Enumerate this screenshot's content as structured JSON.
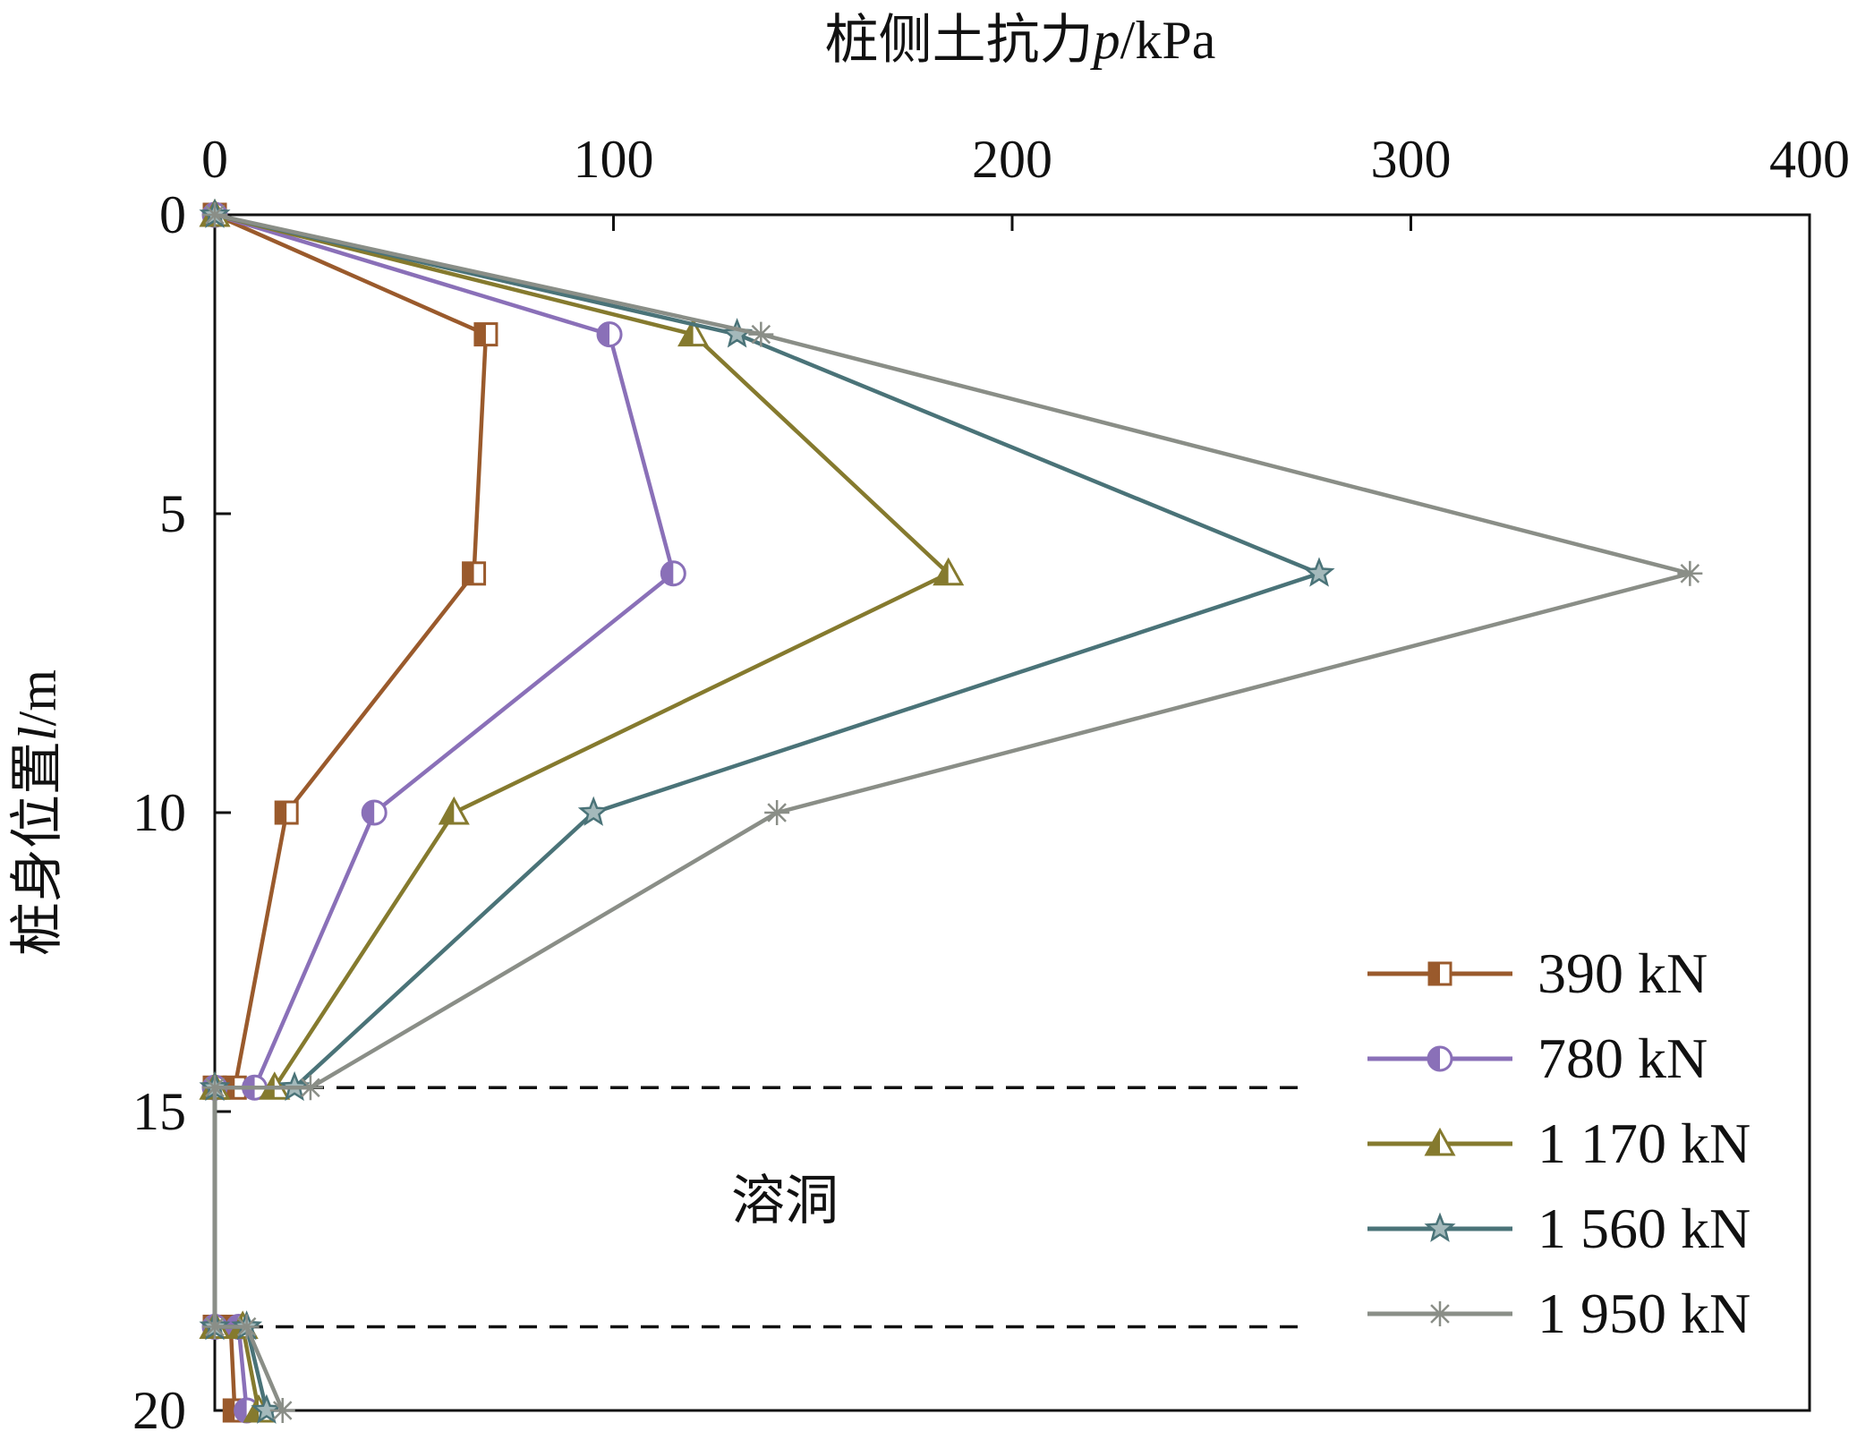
{
  "chart_data": {
    "type": "line",
    "xlabel": "桩侧土抗力",
    "xlabel_var": "p",
    "xlabel_unit": "/kPa",
    "ylabel": "桩身位置",
    "ylabel_var": "l",
    "ylabel_unit": "/m",
    "xlim": [
      0,
      400
    ],
    "ylim": [
      0,
      20
    ],
    "y_inverted": true,
    "x_axis_position": "top",
    "xticks": [
      "0",
      "100",
      "200",
      "300",
      "400"
    ],
    "yticks": [
      "0",
      "5",
      "10",
      "15",
      "20"
    ],
    "grid": false,
    "legend_position": "bottom-right",
    "annotation": {
      "text": "溶洞",
      "x": 143,
      "y": 16.5
    },
    "reference_lines": [
      {
        "y": 14.6,
        "x_from": 0,
        "x_to": 260,
        "style": "dashed"
      },
      {
        "y": 18.6,
        "x_from": 0,
        "x_to": 260,
        "style": "dashed"
      }
    ],
    "series": [
      {
        "name": "390 kN",
        "color": "#9a5a2c",
        "marker": "square-half",
        "points": [
          [
            0,
            0
          ],
          [
            68,
            2
          ],
          [
            65,
            6
          ],
          [
            18,
            10
          ],
          [
            5,
            14.6
          ],
          [
            0,
            14.6
          ],
          [
            0,
            18.6
          ],
          [
            4,
            18.6
          ],
          [
            5,
            20
          ]
        ]
      },
      {
        "name": "780 kN",
        "color": "#8a70b8",
        "marker": "circle-half",
        "points": [
          [
            0,
            0
          ],
          [
            99,
            2
          ],
          [
            115,
            6
          ],
          [
            40,
            10
          ],
          [
            10,
            14.6
          ],
          [
            0,
            14.6
          ],
          [
            0,
            18.6
          ],
          [
            6,
            18.6
          ],
          [
            8,
            20
          ]
        ]
      },
      {
        "name": "1 170 kN",
        "color": "#857a2e",
        "marker": "triangle-half",
        "points": [
          [
            0,
            0
          ],
          [
            120,
            2
          ],
          [
            184,
            6
          ],
          [
            60,
            10
          ],
          [
            15,
            14.6
          ],
          [
            0,
            14.6
          ],
          [
            0,
            18.6
          ],
          [
            7,
            18.6
          ],
          [
            11,
            20
          ]
        ]
      },
      {
        "name": "1 560 kN",
        "color": "#4a7378",
        "marker": "star-half",
        "points": [
          [
            0,
            0
          ],
          [
            131,
            2
          ],
          [
            277,
            6
          ],
          [
            95,
            10
          ],
          [
            20,
            14.6
          ],
          [
            0,
            14.6
          ],
          [
            0,
            18.6
          ],
          [
            8,
            18.6
          ],
          [
            13,
            20
          ]
        ]
      },
      {
        "name": "1 950 kN",
        "color": "#8a8e87",
        "marker": "asterisk",
        "points": [
          [
            0,
            0
          ],
          [
            137,
            2
          ],
          [
            370,
            6
          ],
          [
            141,
            10
          ],
          [
            24,
            14.6
          ],
          [
            0,
            14.6
          ],
          [
            0,
            18.6
          ],
          [
            8,
            18.6
          ],
          [
            17,
            20
          ]
        ]
      }
    ]
  }
}
